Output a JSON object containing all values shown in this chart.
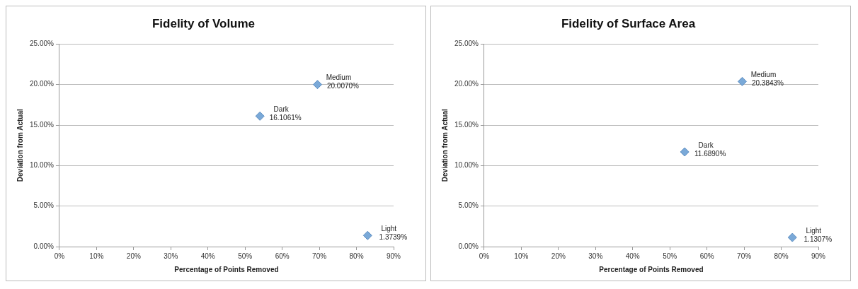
{
  "chart_data": [
    {
      "type": "scatter",
      "title": "Fidelity of Volume",
      "xlabel": "Percentage of Points Removed",
      "ylabel": "Deviation from Actual",
      "x": [
        54,
        69.5,
        83
      ],
      "values": [
        16.1061,
        20.007,
        1.3739
      ],
      "color": "#7aa9d8",
      "marker": "diamond",
      "value_labels": [
        "16.1061%",
        "20.0070%",
        "1.3739%"
      ],
      "annotations": [
        {
          "text": "Dark",
          "x": 54,
          "y": 16.1061
        },
        {
          "text": "Medium",
          "x": 69.5,
          "y": 20.007
        },
        {
          "text": "Light",
          "x": 83,
          "y": 1.3739
        }
      ],
      "xlim": [
        0,
        90
      ],
      "xticks": [
        {
          "value": 0,
          "label": "0%"
        },
        {
          "value": 10,
          "label": "10%"
        },
        {
          "value": 20,
          "label": "20%"
        },
        {
          "value": 30,
          "label": "30%"
        },
        {
          "value": 40,
          "label": "40%"
        },
        {
          "value": 50,
          "label": "50%"
        },
        {
          "value": 60,
          "label": "60%"
        },
        {
          "value": 70,
          "label": "70%"
        },
        {
          "value": 80,
          "label": "80%"
        },
        {
          "value": 90,
          "label": "90%"
        }
      ],
      "ylim": [
        0,
        25
      ],
      "yticks": [
        {
          "value": 0,
          "label": "0.00%"
        },
        {
          "value": 5,
          "label": "5.00%"
        },
        {
          "value": 10,
          "label": "10.00%"
        },
        {
          "value": 15,
          "label": "15.00%"
        },
        {
          "value": 20,
          "label": "20.00%"
        },
        {
          "value": 25,
          "label": "25.00%"
        }
      ],
      "grid": "y"
    },
    {
      "type": "scatter",
      "title": "Fidelity of Surface Area",
      "xlabel": "Percentage of Points Removed",
      "ylabel": "Deviation from Actual",
      "x": [
        54,
        69.5,
        83
      ],
      "values": [
        11.689,
        20.3843,
        1.1307
      ],
      "color": "#7aa9d8",
      "marker": "diamond",
      "value_labels": [
        "11.6890%",
        "20.3843%",
        "1.1307%"
      ],
      "annotations": [
        {
          "text": "Dark",
          "x": 54,
          "y": 11.689
        },
        {
          "text": "Medium",
          "x": 69.5,
          "y": 20.3843
        },
        {
          "text": "Light",
          "x": 83,
          "y": 1.1307
        }
      ],
      "xlim": [
        0,
        90
      ],
      "xticks": [
        {
          "value": 0,
          "label": "0%"
        },
        {
          "value": 10,
          "label": "10%"
        },
        {
          "value": 20,
          "label": "20%"
        },
        {
          "value": 30,
          "label": "30%"
        },
        {
          "value": 40,
          "label": "40%"
        },
        {
          "value": 50,
          "label": "50%"
        },
        {
          "value": 60,
          "label": "60%"
        },
        {
          "value": 70,
          "label": "70%"
        },
        {
          "value": 80,
          "label": "80%"
        },
        {
          "value": 90,
          "label": "90%"
        }
      ],
      "ylim": [
        0,
        25
      ],
      "yticks": [
        {
          "value": 0,
          "label": "0.00%"
        },
        {
          "value": 5,
          "label": "5.00%"
        },
        {
          "value": 10,
          "label": "10.00%"
        },
        {
          "value": 15,
          "label": "15.00%"
        },
        {
          "value": 20,
          "label": "20.00%"
        },
        {
          "value": 25,
          "label": "25.00%"
        }
      ],
      "grid": "y"
    }
  ]
}
